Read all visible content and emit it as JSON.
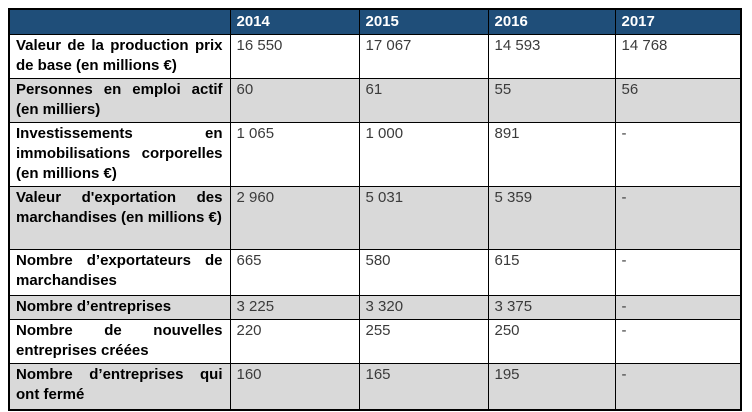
{
  "table": {
    "header": {
      "corner_label": "",
      "year_labels": [
        "2014",
        "2015",
        "2016",
        "2017"
      ]
    },
    "rows": [
      {
        "label": "Valeur de la production prix de base (en millions €)",
        "values": [
          "16 550",
          "17 067",
          "14 593",
          "14 768"
        ]
      },
      {
        "label": "Personnes en emploi actif (en milliers)",
        "values": [
          "60",
          "61",
          "55",
          "56"
        ]
      },
      {
        "label": "Investissements en immobilisations corporelles (en millions €)",
        "values": [
          "1 065",
          "1 000",
          "891",
          "-"
        ]
      },
      {
        "label": "Valeur d'exportation des marchandises (en millions €)",
        "values": [
          "2 960",
          "5 031",
          "5 359",
          "-"
        ]
      },
      {
        "label": "Nombre d’exportateurs de marchandises",
        "values": [
          "665",
          "580",
          "615",
          "-"
        ]
      },
      {
        "label": "Nombre d’entreprises",
        "values": [
          "3 225",
          "3 320",
          "3 375",
          "-"
        ]
      },
      {
        "label": "Nombre de nouvelles entreprises créées",
        "values": [
          "220",
          "255",
          "250",
          "-"
        ]
      },
      {
        "label": "Nombre d’entreprises qui ont fermé",
        "values": [
          "160",
          "165",
          "195",
          "-"
        ]
      }
    ],
    "colors": {
      "header_bg": "#1F4E79",
      "header_text": "#FFFFFF",
      "shaded_row_bg": "#D9D9D9",
      "border": "#000000",
      "label_text": "#000000",
      "value_text": "#3B3B3B"
    }
  }
}
